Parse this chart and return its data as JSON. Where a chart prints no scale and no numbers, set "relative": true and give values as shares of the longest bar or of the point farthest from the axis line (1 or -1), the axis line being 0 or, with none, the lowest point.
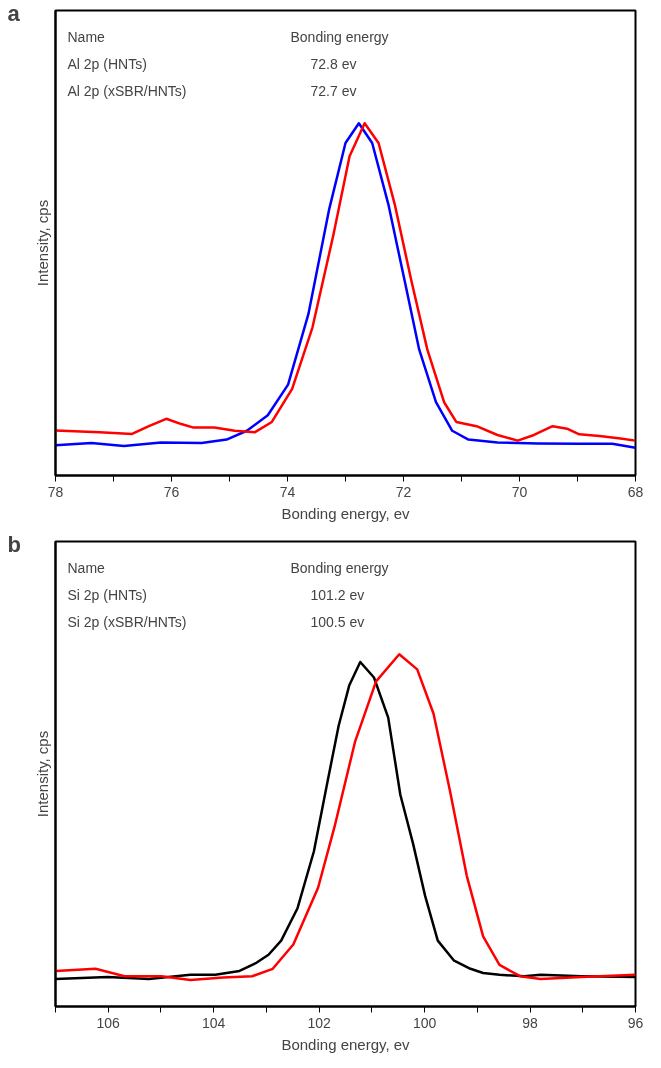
{
  "chart_data": [
    {
      "type": "line",
      "title": "a",
      "xlabel": "Bonding energy, ev",
      "ylabel": "Intensity, cps",
      "relative": true,
      "grid": false,
      "marker": "none",
      "line_style": "solid",
      "xlim": [
        78,
        68
      ],
      "xticks": [
        78,
        {
          "value": 77,
          "label": null
        },
        76,
        {
          "value": 75,
          "label": null
        },
        74,
        {
          "value": 73,
          "label": null
        },
        72,
        {
          "value": 71,
          "label": null
        },
        70,
        {
          "value": 69,
          "label": null
        },
        68
      ],
      "annotations": [
        "Name",
        "Bonding energy",
        "Al 2p (HNTs)",
        "72.8 ev",
        "Al 2p (xSBR/HNTs)",
        "72.7 ev"
      ],
      "series": [
        {
          "color": "#0000ff",
          "x": [
            78.0,
            77.38,
            76.82,
            76.18,
            75.48,
            75.05,
            74.7,
            74.34,
            73.99,
            73.64,
            73.28,
            73.0,
            72.77,
            72.54,
            72.26,
            71.97,
            71.73,
            71.44,
            71.16,
            70.88,
            70.38,
            69.68,
            68.97,
            68.4,
            68.0
          ],
          "values": [
            0.086,
            0.092,
            0.084,
            0.094,
            0.092,
            0.102,
            0.127,
            0.171,
            0.258,
            0.458,
            0.757,
            0.944,
            1.0,
            0.944,
            0.769,
            0.545,
            0.358,
            0.208,
            0.127,
            0.102,
            0.094,
            0.091,
            0.09,
            0.09,
            0.079
          ]
        },
        {
          "color": "#ff0000",
          "x": [
            78.0,
            77.24,
            76.68,
            76.39,
            76.09,
            75.83,
            75.62,
            75.26,
            74.91,
            74.56,
            74.27,
            73.92,
            73.57,
            73.21,
            72.93,
            72.67,
            72.43,
            72.15,
            71.87,
            71.59,
            71.3,
            71.09,
            70.74,
            70.38,
            70.03,
            69.75,
            69.43,
            69.18,
            68.97,
            68.62,
            68.26,
            68.0
          ],
          "values": [
            0.128,
            0.123,
            0.118,
            0.14,
            0.161,
            0.146,
            0.136,
            0.136,
            0.127,
            0.123,
            0.152,
            0.246,
            0.42,
            0.682,
            0.906,
            1.0,
            0.944,
            0.769,
            0.557,
            0.358,
            0.208,
            0.152,
            0.14,
            0.115,
            0.099,
            0.115,
            0.14,
            0.133,
            0.117,
            0.112,
            0.105,
            0.099
          ]
        }
      ]
    },
    {
      "type": "line",
      "title": "b",
      "xlabel": "Bonding energy, ev",
      "ylabel": "Intensity, cps",
      "relative": true,
      "grid": false,
      "marker": "none",
      "line_style": "solid",
      "xlim": [
        107,
        96
      ],
      "xticks": [
        {
          "value": 107,
          "label": null
        },
        106,
        {
          "value": 105,
          "label": null
        },
        104,
        {
          "value": 103,
          "label": null
        },
        102,
        {
          "value": 101,
          "label": null
        },
        100,
        {
          "value": 99,
          "label": null
        },
        98,
        {
          "value": 97,
          "label": null
        },
        96
      ],
      "annotations": [
        "Name",
        "Bonding energy",
        "Si 2p (HNTs)",
        "101.2 ev",
        "Si 2p (xSBR/HNTs)",
        "100.5 ev"
      ],
      "series": [
        {
          "color": "#000000",
          "x": [
            107.0,
            106.01,
            105.23,
            104.44,
            103.97,
            103.51,
            103.19,
            102.96,
            102.72,
            102.41,
            102.1,
            101.86,
            101.63,
            101.43,
            101.22,
            100.96,
            100.69,
            100.46,
            100.22,
            99.99,
            99.75,
            99.44,
            99.13,
            98.89,
            98.58,
            98.11,
            97.8,
            97.02,
            96.0
          ],
          "values": [
            0.078,
            0.084,
            0.078,
            0.09,
            0.09,
            0.101,
            0.124,
            0.147,
            0.187,
            0.279,
            0.44,
            0.624,
            0.797,
            0.911,
            0.978,
            0.934,
            0.82,
            0.601,
            0.463,
            0.314,
            0.187,
            0.13,
            0.107,
            0.095,
            0.09,
            0.086,
            0.09,
            0.086,
            0.084
          ]
        },
        {
          "color": "#ff0000",
          "x": [
            107.0,
            106.24,
            105.69,
            104.99,
            104.44,
            103.82,
            103.27,
            102.88,
            102.49,
            102.02,
            101.71,
            101.32,
            100.92,
            100.48,
            100.14,
            99.83,
            99.52,
            99.2,
            98.89,
            98.58,
            98.19,
            97.8,
            97.02,
            96.0
          ],
          "values": [
            0.101,
            0.107,
            0.086,
            0.086,
            0.075,
            0.082,
            0.086,
            0.107,
            0.176,
            0.337,
            0.509,
            0.751,
            0.923,
            1.0,
            0.957,
            0.831,
            0.613,
            0.371,
            0.199,
            0.118,
            0.086,
            0.078,
            0.084,
            0.09
          ]
        }
      ]
    }
  ]
}
